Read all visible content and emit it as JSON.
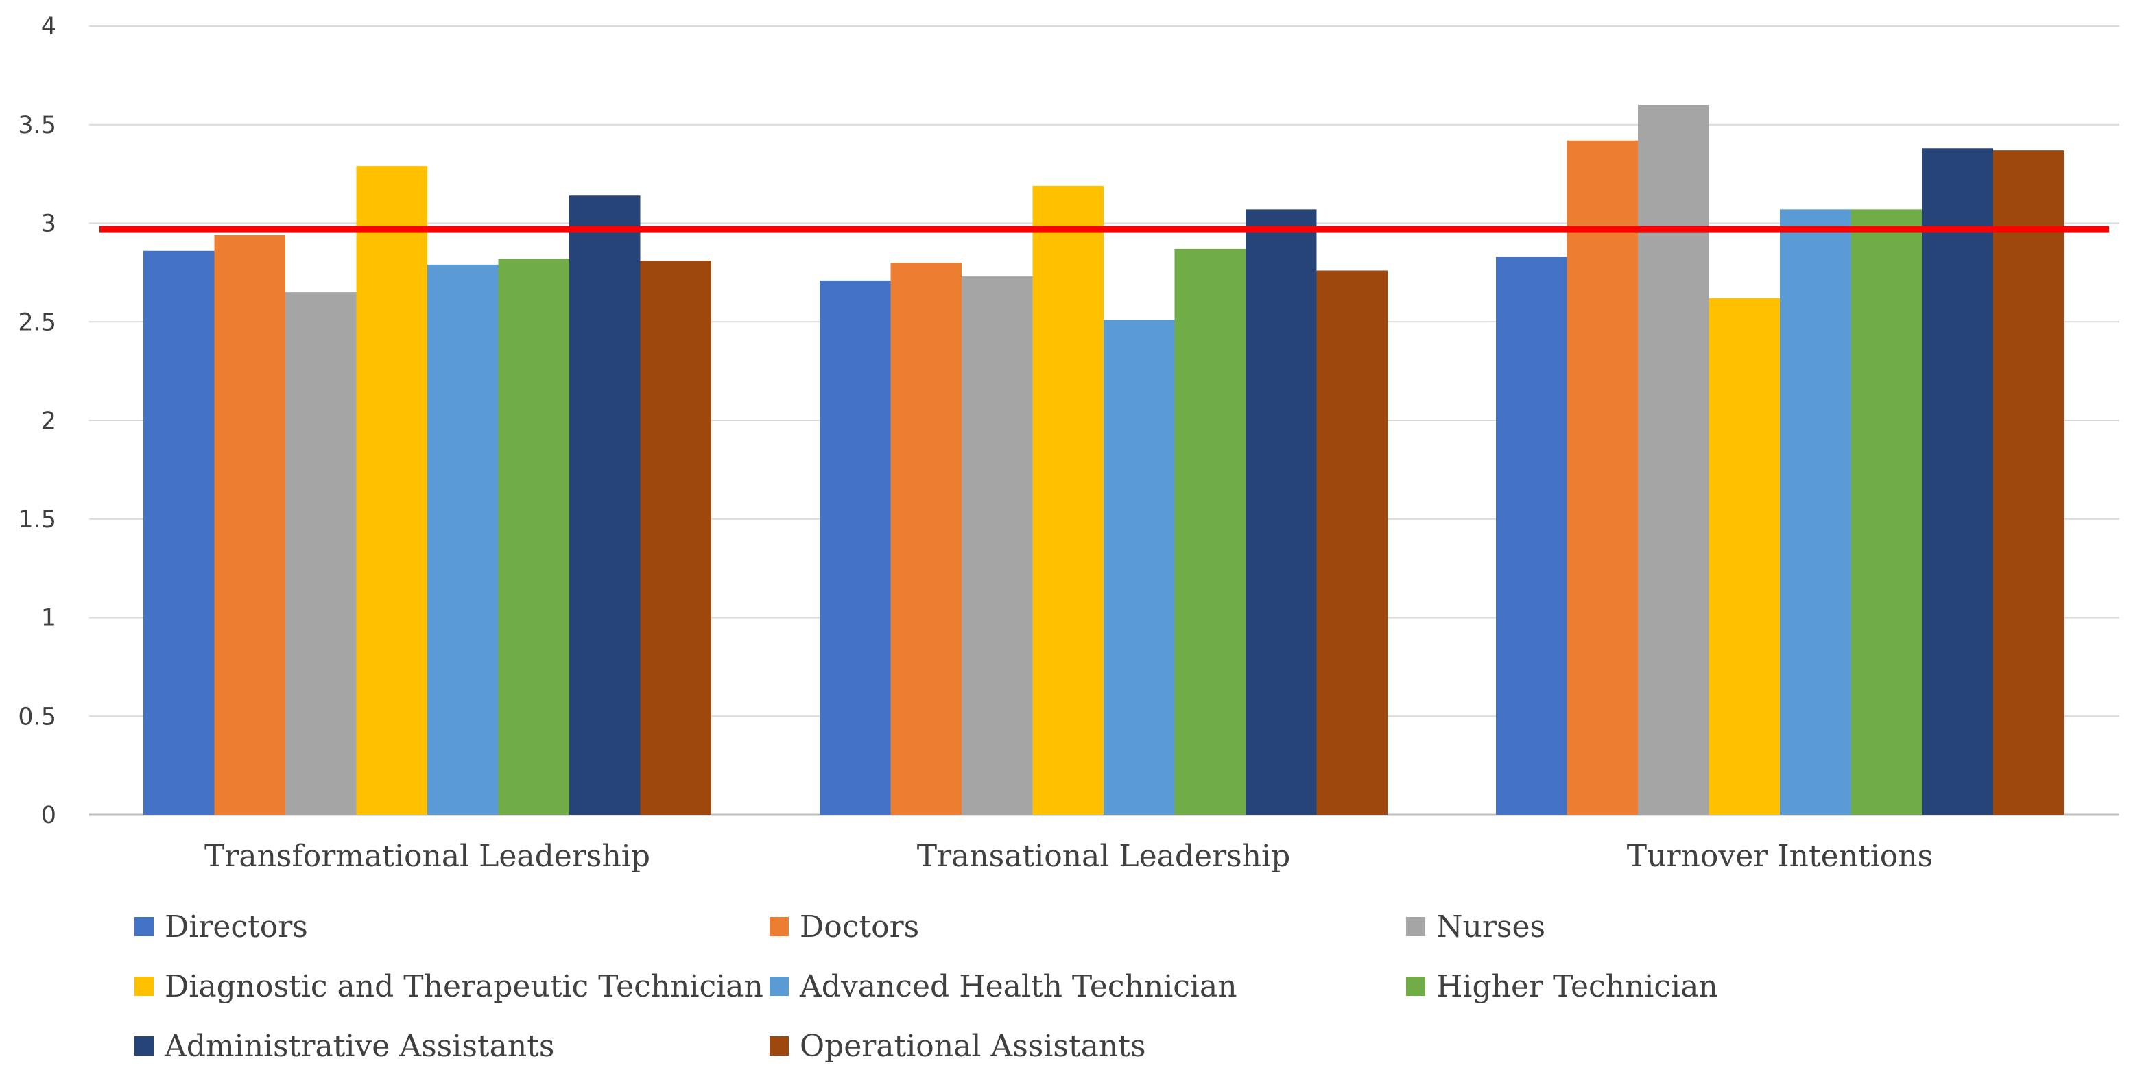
{
  "chart_data": {
    "type": "bar",
    "title": "",
    "xlabel": "",
    "ylabel": "",
    "ylim": [
      0,
      4
    ],
    "yticks": [
      "0",
      "0.5",
      "1",
      "1.5",
      "2",
      "2.5",
      "3",
      "3.5",
      "4"
    ],
    "grid": true,
    "legend_position": "bottom",
    "categories": [
      "Transformational Leadership",
      "Transational Leadership",
      "Turnover Intentions"
    ],
    "series": [
      {
        "name": "Directors",
        "color": "#4472C4",
        "values": [
          2.86,
          2.71,
          2.83
        ]
      },
      {
        "name": "Doctors",
        "color": "#ED7D31",
        "values": [
          2.94,
          2.8,
          3.42
        ]
      },
      {
        "name": "Nurses",
        "color": "#A5A5A5",
        "values": [
          2.65,
          2.73,
          3.6
        ]
      },
      {
        "name": "Diagnostic and Therapeutic Technician",
        "color": "#FFC000",
        "values": [
          3.29,
          3.19,
          2.62
        ]
      },
      {
        "name": "Advanced Health Technician",
        "color": "#5B9BD5",
        "values": [
          2.79,
          2.51,
          3.07
        ]
      },
      {
        "name": "Higher Technician",
        "color": "#70AD47",
        "values": [
          2.82,
          2.87,
          3.07
        ]
      },
      {
        "name": "Administrative Assistants",
        "color": "#264478",
        "values": [
          3.14,
          3.07,
          3.38
        ]
      },
      {
        "name": "Operational Assistants",
        "color": "#9E480E",
        "values": [
          2.81,
          2.76,
          3.37
        ]
      }
    ],
    "reference_line": {
      "value": 2.97,
      "color": "#FF0000"
    }
  }
}
